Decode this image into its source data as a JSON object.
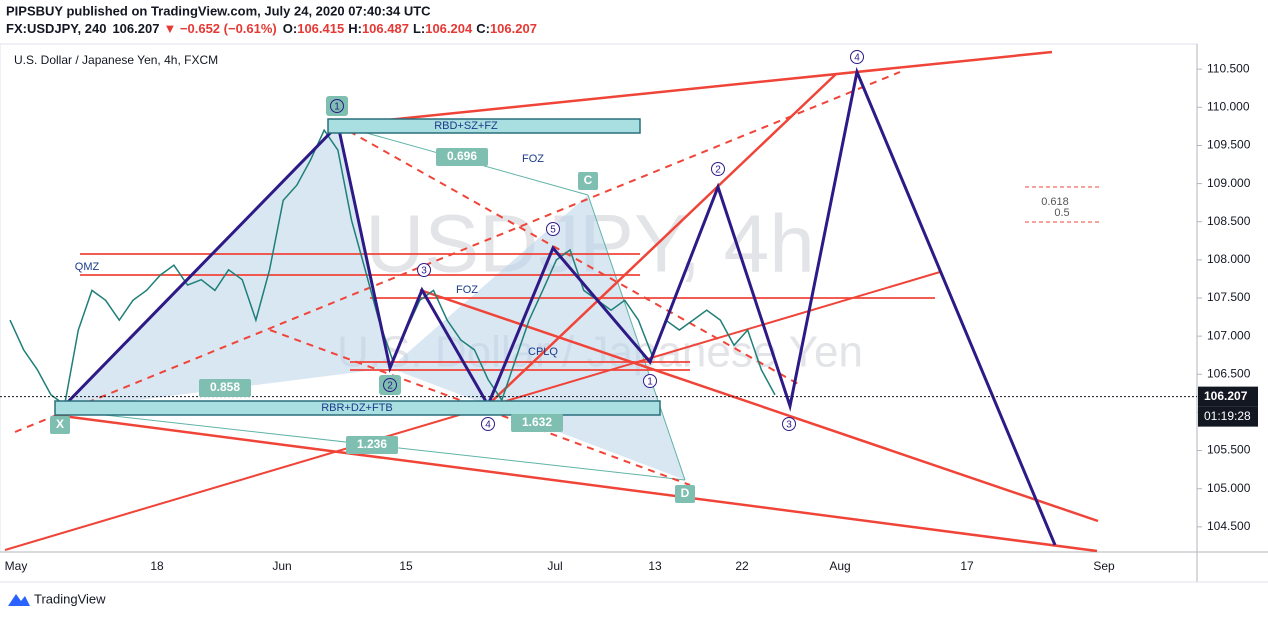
{
  "header": {
    "publisher": "PIPSBUY published on TradingView.com, July 24, 2020 07:40:34 UTC",
    "symbol": "FX:USDJPY, 240",
    "last": 106.207,
    "change": "▼ −0.652 (−0.61%)",
    "ohlc": [
      {
        "label": "O:",
        "value": 106.415
      },
      {
        "label": "H:",
        "value": 106.487
      },
      {
        "label": "L:",
        "value": 106.204
      },
      {
        "label": "C:",
        "value": 106.207
      }
    ]
  },
  "chart_data": {
    "type": "line",
    "title": "U.S. Dollar / Japanese Yen, 4h, FXCM",
    "watermark": [
      "USDJPY, 4h",
      "U.S. Dollar / Japanese Yen"
    ],
    "color": "#1f7f78",
    "values": [
      107.21,
      106.82,
      106.56,
      106.23,
      106.1,
      107.08,
      107.6,
      107.47,
      107.21,
      107.47,
      107.6,
      107.8,
      107.93,
      107.67,
      107.74,
      107.6,
      107.87,
      107.74,
      107.21,
      107.87,
      108.78,
      108.98,
      109.31,
      109.7,
      109.44,
      108.52,
      107.87,
      107.21,
      106.69,
      107.08,
      107.47,
      107.6,
      107.21,
      106.95,
      106.82,
      106.43,
      106.16,
      106.69,
      107.21,
      107.6,
      108.0,
      108.13,
      107.6,
      107.47,
      107.34,
      107.47,
      107.21,
      106.75,
      107.21,
      107.08,
      107.21,
      107.34,
      107.21,
      106.88,
      107.08,
      106.56,
      106.23
    ],
    "ylim": [
      104.17,
      110.83
    ],
    "yticks": [
      {
        "value": 104.5,
        "label": "104.500"
      },
      {
        "value": 105,
        "label": "105.000"
      },
      {
        "value": 105.5,
        "label": "105.500"
      },
      {
        "value": 106,
        "label": "106.000"
      },
      {
        "value": 106.5,
        "label": "106.500"
      },
      {
        "value": 107,
        "label": "107.000"
      },
      {
        "value": 107.5,
        "label": "107.500"
      },
      {
        "value": 108,
        "label": "108.000"
      },
      {
        "value": 108.5,
        "label": "108.500"
      },
      {
        "value": 109,
        "label": "109.000"
      },
      {
        "value": 109.5,
        "label": "109.500"
      },
      {
        "value": 110,
        "label": "110.000"
      },
      {
        "value": 110.5,
        "label": "110.500"
      }
    ],
    "x_axis_labels": [
      "May",
      "18",
      "Jun",
      "15",
      "Jul",
      "13",
      "22",
      "Aug",
      "17",
      "Sep"
    ],
    "countdown": "01:19:28",
    "grid": false,
    "annotations": [
      "RBD+SZ+FZ",
      "RBR+DZ+FTB",
      "0.696",
      "C",
      "0.858",
      "1.632",
      "1.236",
      "X",
      "D",
      "FOZ",
      "QMZ",
      "FOZ",
      "CPLQ",
      "1",
      "2",
      "3",
      "4",
      "5",
      "1",
      "2",
      "3",
      "4",
      "0.618",
      "0.5"
    ]
  },
  "footer": {
    "brand": "TradingView"
  }
}
